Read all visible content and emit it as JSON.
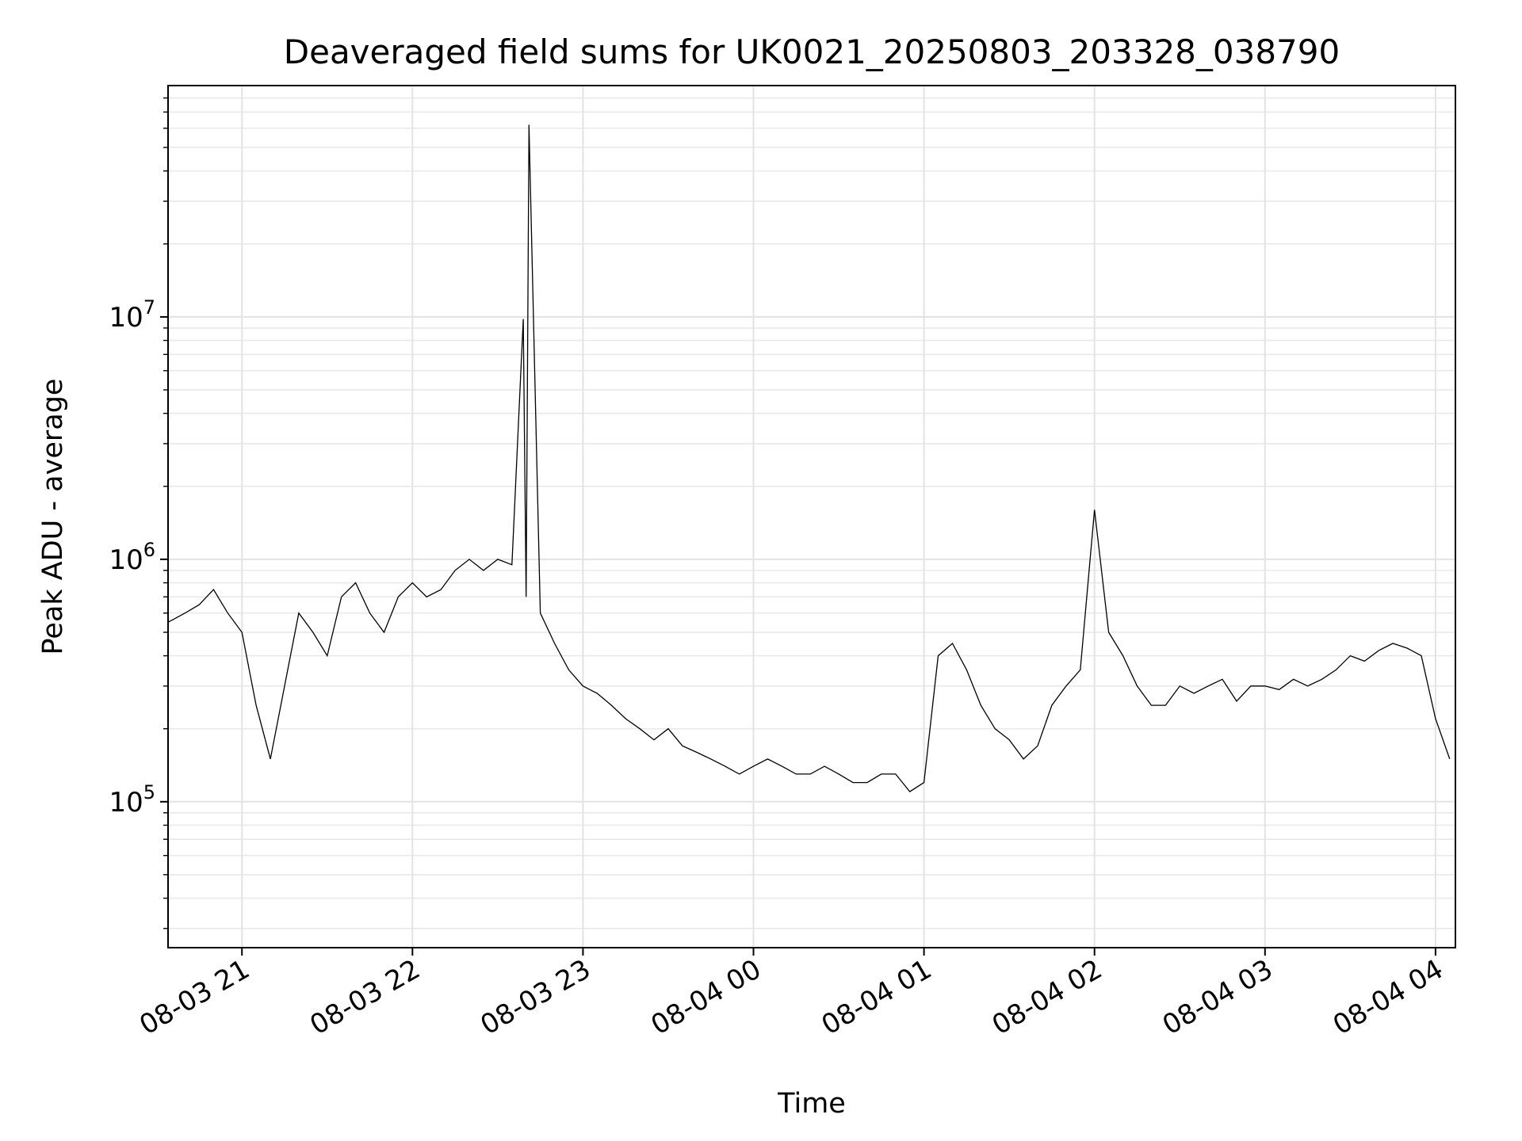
{
  "chart_data": {
    "type": "line",
    "title": "Deaveraged field sums for UK0021_20250803_203328_038790",
    "xlabel": "Time",
    "ylabel": "Peak ADU - average",
    "yscale": "log",
    "grid": true,
    "grid_minor": true,
    "xlim": [
      "2025-08-03 20:34",
      "2025-08-04 04:07"
    ],
    "ylim": [
      25000,
      90000000
    ],
    "x_ticks": [
      "08-03 21",
      "08-03 22",
      "08-03 23",
      "08-04 00",
      "08-04 01",
      "08-04 02",
      "08-04 03",
      "08-04 04"
    ],
    "y_ticks": [
      {
        "base": "10",
        "exp": "5",
        "value": 100000
      },
      {
        "base": "10",
        "exp": "6",
        "value": 1000000
      },
      {
        "base": "10",
        "exp": "7",
        "value": 10000000
      }
    ],
    "line_color": "#000000",
    "series": [
      {
        "x": [
          "2025-08-03 20:34",
          "2025-08-03 20:40",
          "2025-08-03 20:45",
          "2025-08-03 20:50",
          "2025-08-03 20:55",
          "2025-08-03 21:00",
          "2025-08-03 21:05",
          "2025-08-03 21:10",
          "2025-08-03 21:15",
          "2025-08-03 21:20",
          "2025-08-03 21:25",
          "2025-08-03 21:30",
          "2025-08-03 21:35",
          "2025-08-03 21:40",
          "2025-08-03 21:45",
          "2025-08-03 21:50",
          "2025-08-03 21:55",
          "2025-08-03 22:00",
          "2025-08-03 22:05",
          "2025-08-03 22:10",
          "2025-08-03 22:15",
          "2025-08-03 22:20",
          "2025-08-03 22:25",
          "2025-08-03 22:30",
          "2025-08-03 22:35",
          "2025-08-03 22:39",
          "2025-08-03 22:40",
          "2025-08-03 22:41",
          "2025-08-03 22:45",
          "2025-08-03 22:50",
          "2025-08-03 22:55",
          "2025-08-03 23:00",
          "2025-08-03 23:05",
          "2025-08-03 23:10",
          "2025-08-03 23:15",
          "2025-08-03 23:20",
          "2025-08-03 23:25",
          "2025-08-03 23:30",
          "2025-08-03 23:35",
          "2025-08-03 23:40",
          "2025-08-03 23:45",
          "2025-08-03 23:50",
          "2025-08-03 23:55",
          "2025-08-04 00:00",
          "2025-08-04 00:05",
          "2025-08-04 00:10",
          "2025-08-04 00:15",
          "2025-08-04 00:20",
          "2025-08-04 00:25",
          "2025-08-04 00:30",
          "2025-08-04 00:35",
          "2025-08-04 00:40",
          "2025-08-04 00:45",
          "2025-08-04 00:50",
          "2025-08-04 00:55",
          "2025-08-04 01:00",
          "2025-08-04 01:05",
          "2025-08-04 01:10",
          "2025-08-04 01:15",
          "2025-08-04 01:20",
          "2025-08-04 01:25",
          "2025-08-04 01:30",
          "2025-08-04 01:35",
          "2025-08-04 01:40",
          "2025-08-04 01:45",
          "2025-08-04 01:50",
          "2025-08-04 01:55",
          "2025-08-04 02:00",
          "2025-08-04 02:05",
          "2025-08-04 02:10",
          "2025-08-04 02:15",
          "2025-08-04 02:20",
          "2025-08-04 02:25",
          "2025-08-04 02:30",
          "2025-08-04 02:35",
          "2025-08-04 02:40",
          "2025-08-04 02:45",
          "2025-08-04 02:50",
          "2025-08-04 02:55",
          "2025-08-04 03:00",
          "2025-08-04 03:05",
          "2025-08-04 03:10",
          "2025-08-04 03:15",
          "2025-08-04 03:20",
          "2025-08-04 03:25",
          "2025-08-04 03:30",
          "2025-08-04 03:35",
          "2025-08-04 03:40",
          "2025-08-04 03:45",
          "2025-08-04 03:50",
          "2025-08-04 03:55",
          "2025-08-04 04:00",
          "2025-08-04 04:05"
        ],
        "y": [
          550000,
          600000,
          650000,
          750000,
          600000,
          500000,
          250000,
          150000,
          300000,
          600000,
          500000,
          400000,
          700000,
          800000,
          600000,
          500000,
          700000,
          800000,
          700000,
          750000,
          900000,
          1000000,
          900000,
          1000000,
          950000,
          9800000,
          700000,
          62000000,
          600000,
          450000,
          350000,
          300000,
          280000,
          250000,
          220000,
          200000,
          180000,
          200000,
          170000,
          160000,
          150000,
          140000,
          130000,
          140000,
          150000,
          140000,
          130000,
          130000,
          140000,
          130000,
          120000,
          120000,
          130000,
          130000,
          110000,
          120000,
          400000,
          450000,
          350000,
          250000,
          200000,
          180000,
          150000,
          170000,
          250000,
          300000,
          350000,
          1600000,
          500000,
          400000,
          300000,
          250000,
          250000,
          300000,
          280000,
          300000,
          320000,
          260000,
          300000,
          300000,
          290000,
          320000,
          300000,
          320000,
          350000,
          400000,
          380000,
          420000,
          450000,
          430000,
          400000,
          220000,
          150000
        ]
      }
    ]
  }
}
